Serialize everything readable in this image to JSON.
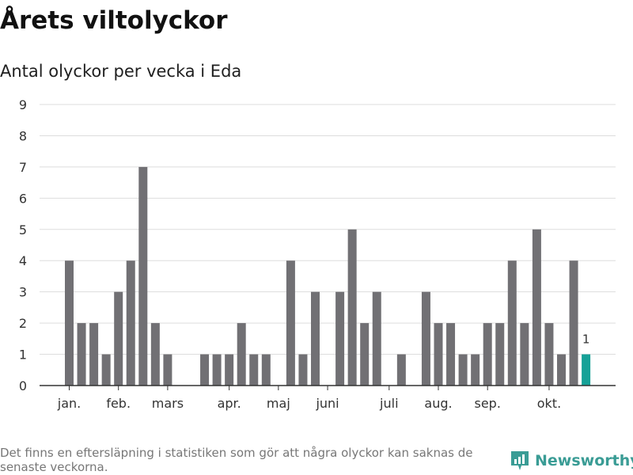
{
  "header": {
    "title": "Årets viltolyckor",
    "subtitle": "Antal olyckor per vecka i Eda"
  },
  "footer": {
    "note": "Det finns en eftersläpning i statistiken som gör att några olyckor kan saknas de senaste veckorna.",
    "brand": "Newsworthy"
  },
  "colors": {
    "bar": "#717074",
    "highlight": "#16a197",
    "grid": "#dddddd",
    "axis": "#333333",
    "brand": "#3a9c95"
  },
  "chart_data": {
    "type": "bar",
    "title": "",
    "xlabel": "",
    "ylabel": "",
    "ylim": [
      0,
      9
    ],
    "yticks": [
      0,
      1,
      2,
      3,
      4,
      5,
      6,
      7,
      8,
      9
    ],
    "grid": true,
    "x": [
      1,
      2,
      3,
      4,
      5,
      6,
      7,
      8,
      9,
      10,
      11,
      12,
      13,
      14,
      15,
      16,
      17,
      18,
      19,
      20,
      21,
      22,
      23,
      24,
      25,
      26,
      27,
      28,
      29,
      30,
      31,
      32,
      33,
      34,
      35,
      36,
      37,
      38,
      39,
      40,
      41,
      42,
      43
    ],
    "values": [
      4,
      2,
      2,
      1,
      3,
      4,
      7,
      2,
      1,
      0,
      0,
      1,
      1,
      1,
      2,
      1,
      1,
      0,
      4,
      1,
      3,
      0,
      3,
      5,
      2,
      3,
      0,
      1,
      0,
      3,
      2,
      2,
      1,
      1,
      2,
      2,
      4,
      2,
      5,
      2,
      1,
      4,
      1
    ],
    "month_labels": [
      {
        "label": "jan.",
        "week": 1
      },
      {
        "label": "feb.",
        "week": 5
      },
      {
        "label": "mars",
        "week": 9
      },
      {
        "label": "apr.",
        "week": 14
      },
      {
        "label": "maj",
        "week": 18
      },
      {
        "label": "juni",
        "week": 22
      },
      {
        "label": "juli",
        "week": 27
      },
      {
        "label": "aug.",
        "week": 31
      },
      {
        "label": "sep.",
        "week": 35
      },
      {
        "label": "okt.",
        "week": 40
      }
    ],
    "highlight_index": 42,
    "annotation": {
      "week": 43,
      "text": "1"
    }
  }
}
